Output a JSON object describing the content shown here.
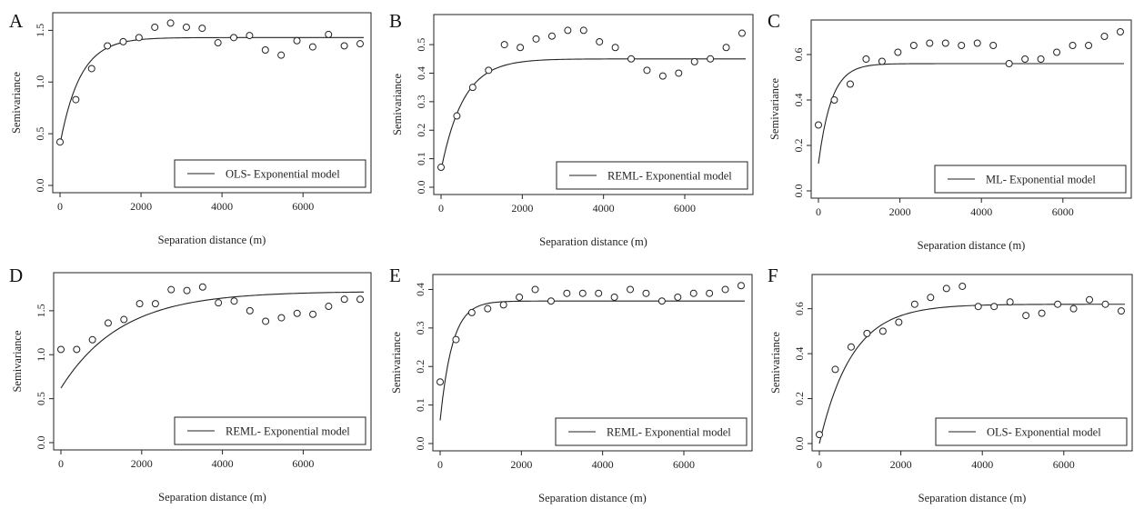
{
  "chart_data": [
    {
      "type": "scatter",
      "label": "A",
      "xlabel": "Separation distance (m)",
      "ylabel": "Semivariance",
      "xlim": [
        0,
        7500
      ],
      "ylim": [
        0,
        1.6
      ],
      "xticks": [
        0,
        2000,
        4000,
        6000
      ],
      "yticks": [
        0,
        0.5,
        1.0,
        1.5
      ],
      "ytick_labels": [
        "0.0",
        "0.5",
        "1.0",
        "1.5"
      ],
      "x": [
        0,
        390,
        780,
        1170,
        1560,
        1950,
        2340,
        2730,
        3120,
        3510,
        3900,
        4290,
        4680,
        5070,
        5460,
        5850,
        6240,
        6630,
        7020,
        7410
      ],
      "y": [
        0.42,
        0.83,
        1.13,
        1.35,
        1.39,
        1.43,
        1.53,
        1.57,
        1.53,
        1.52,
        1.38,
        1.43,
        1.45,
        1.31,
        1.26,
        1.4,
        1.34,
        1.46,
        1.35,
        1.37
      ],
      "model": {
        "nugget": 0.4,
        "sill": 1.43,
        "range": 500
      },
      "legend": "OLS- Exponential model",
      "legend_loc": "bottom-right"
    },
    {
      "type": "scatter",
      "label": "B",
      "xlabel": "Separation distance (m)",
      "ylabel": "Semivariance",
      "xlim": [
        0,
        7500
      ],
      "ylim": [
        0,
        0.58
      ],
      "xticks": [
        0,
        2000,
        4000,
        6000
      ],
      "yticks": [
        0,
        0.1,
        0.2,
        0.3,
        0.4,
        0.5
      ],
      "ytick_labels": [
        "0.0",
        "0.1",
        "0.2",
        "0.3",
        "0.4",
        "0.5"
      ],
      "x": [
        0,
        390,
        780,
        1170,
        1560,
        1950,
        2340,
        2730,
        3120,
        3510,
        3900,
        4290,
        4680,
        5070,
        5460,
        5850,
        6240,
        6630,
        7020,
        7410
      ],
      "y": [
        0.07,
        0.25,
        0.35,
        0.41,
        0.5,
        0.49,
        0.52,
        0.53,
        0.55,
        0.55,
        0.51,
        0.49,
        0.45,
        0.41,
        0.39,
        0.4,
        0.44,
        0.45,
        0.49,
        0.54
      ],
      "model": {
        "nugget": 0.06,
        "sill": 0.45,
        "range": 550
      },
      "legend": "REML- Exponential model",
      "legend_loc": "bottom-right"
    },
    {
      "type": "scatter",
      "label": "C",
      "xlabel": "Separation distance (m)",
      "ylabel": "Semivariance",
      "xlim": [
        0,
        7500
      ],
      "ylim": [
        0,
        0.72
      ],
      "xticks": [
        0,
        2000,
        4000,
        6000
      ],
      "yticks": [
        0,
        0.2,
        0.4,
        0.6
      ],
      "ytick_labels": [
        "0.0",
        "0.2",
        "0.4",
        "0.6"
      ],
      "x": [
        0,
        390,
        780,
        1170,
        1560,
        1950,
        2340,
        2730,
        3120,
        3510,
        3900,
        4290,
        4680,
        5070,
        5460,
        5850,
        6240,
        6630,
        7020,
        7410
      ],
      "y": [
        0.29,
        0.4,
        0.47,
        0.58,
        0.57,
        0.61,
        0.64,
        0.65,
        0.65,
        0.64,
        0.65,
        0.64,
        0.56,
        0.58,
        0.58,
        0.61,
        0.64,
        0.64,
        0.68,
        0.7
      ],
      "model": {
        "nugget": 0.12,
        "sill": 0.56,
        "range": 320
      },
      "legend": "ML- Exponential model",
      "legend_loc": "bottom-right"
    },
    {
      "type": "scatter",
      "label": "D",
      "xlabel": "Separation distance (m)",
      "ylabel": "Semivariance",
      "xlim": [
        0,
        7500
      ],
      "ylim": [
        0,
        1.85
      ],
      "xticks": [
        0,
        2000,
        4000,
        6000
      ],
      "yticks": [
        0,
        0.5,
        1.0,
        1.5
      ],
      "ytick_labels": [
        "0.0",
        "0.5",
        "1.0",
        "1.5"
      ],
      "x": [
        0,
        390,
        780,
        1170,
        1560,
        1950,
        2340,
        2730,
        3120,
        3510,
        3900,
        4290,
        4680,
        5070,
        5460,
        5850,
        6240,
        6630,
        7020,
        7410
      ],
      "y": [
        1.06,
        1.06,
        1.17,
        1.36,
        1.4,
        1.58,
        1.58,
        1.74,
        1.73,
        1.77,
        1.59,
        1.61,
        1.5,
        1.38,
        1.42,
        1.47,
        1.46,
        1.55,
        1.63,
        1.63
      ],
      "model": {
        "nugget": 0.62,
        "sill": 1.72,
        "range": 1500
      },
      "legend": "REML- Exponential model",
      "legend_loc": "bottom-right"
    },
    {
      "type": "scatter",
      "label": "E",
      "xlabel": "Separation distance (m)",
      "ylabel": "Semivariance",
      "xlim": [
        0,
        7500
      ],
      "ylim": [
        0,
        0.42
      ],
      "xticks": [
        0,
        2000,
        4000,
        6000
      ],
      "yticks": [
        0,
        0.1,
        0.2,
        0.3,
        0.4
      ],
      "ytick_labels": [
        "0.0",
        "0.1",
        "0.2",
        "0.3",
        "0.4"
      ],
      "x": [
        0,
        390,
        780,
        1170,
        1560,
        1950,
        2340,
        2730,
        3120,
        3510,
        3900,
        4290,
        4680,
        5070,
        5460,
        5850,
        6240,
        6630,
        7020,
        7410
      ],
      "y": [
        0.16,
        0.27,
        0.34,
        0.35,
        0.36,
        0.38,
        0.4,
        0.37,
        0.39,
        0.39,
        0.39,
        0.38,
        0.4,
        0.39,
        0.37,
        0.38,
        0.39,
        0.39,
        0.4,
        0.41
      ],
      "model": {
        "nugget": 0.06,
        "sill": 0.37,
        "range": 300
      },
      "legend": "REML- Exponential model",
      "legend_loc": "bottom-right"
    },
    {
      "type": "scatter",
      "label": "F",
      "xlabel": "Separation distance (m)",
      "ylabel": "Semivariance",
      "xlim": [
        0,
        7500
      ],
      "ylim": [
        0,
        0.72
      ],
      "xticks": [
        0,
        2000,
        4000,
        6000
      ],
      "yticks": [
        0,
        0.2,
        0.4,
        0.6
      ],
      "ytick_labels": [
        "0.0",
        "0.2",
        "0.4",
        "0.6"
      ],
      "x": [
        0,
        390,
        780,
        1170,
        1560,
        1950,
        2340,
        2730,
        3120,
        3510,
        3900,
        4290,
        4680,
        5070,
        5460,
        5850,
        6240,
        6630,
        7020,
        7410
      ],
      "y": [
        0.04,
        0.33,
        0.43,
        0.49,
        0.5,
        0.54,
        0.62,
        0.65,
        0.69,
        0.7,
        0.61,
        0.61,
        0.63,
        0.57,
        0.58,
        0.62,
        0.6,
        0.64,
        0.62,
        0.59
      ],
      "model": {
        "nugget": 0.0,
        "sill": 0.62,
        "range": 800
      },
      "legend": "OLS- Exponential model",
      "legend_loc": "bottom-right"
    }
  ]
}
